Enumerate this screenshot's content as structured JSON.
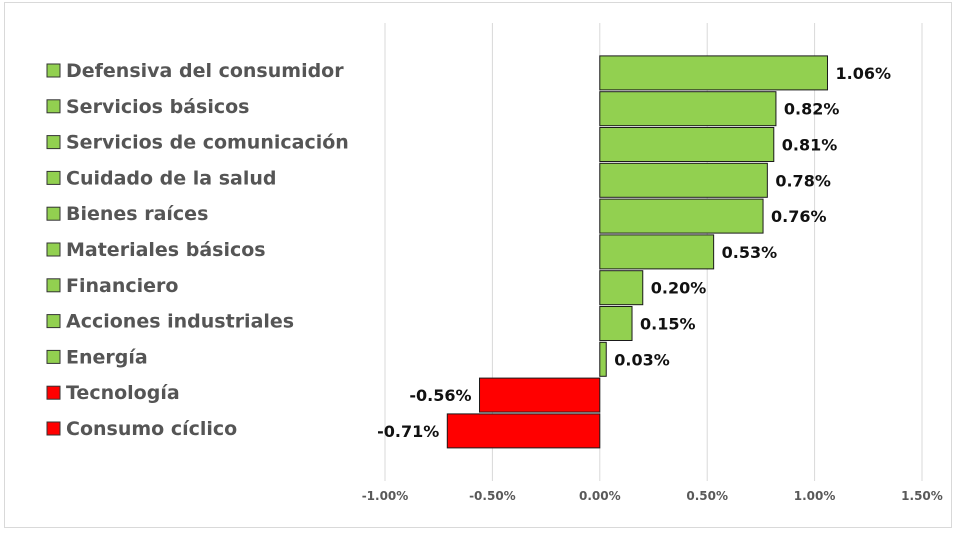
{
  "chart_data": {
    "type": "bar",
    "orientation": "horizontal",
    "categories": [
      "Defensiva del consumidor",
      "Servicios básicos",
      "Servicios de comunicación",
      "Cuidado de la salud",
      "Bienes raíces",
      "Materiales básicos",
      "Financiero",
      "Acciones industriales",
      "Energía",
      "Tecnología",
      "Consumo cíclico"
    ],
    "values": [
      1.06,
      0.82,
      0.81,
      0.78,
      0.76,
      0.53,
      0.2,
      0.15,
      0.03,
      -0.56,
      -0.71
    ],
    "value_labels": [
      "1.06%",
      "0.82%",
      "0.81%",
      "0.78%",
      "0.76%",
      "0.53%",
      "0.20%",
      "0.15%",
      "0.03%",
      "-0.56%",
      "-0.71%"
    ],
    "xlim": [
      -1.0,
      1.5
    ],
    "x_ticks": [
      -1.0,
      -0.5,
      0.0,
      0.5,
      1.0,
      1.5
    ],
    "x_tick_labels": [
      "-1.00%",
      "-0.50%",
      "0.00%",
      "0.50%",
      "1.00%",
      "1.50%"
    ],
    "grid": "vertical",
    "legend_position": "left",
    "colors": {
      "positive": "#92d050",
      "negative": "#ff0000",
      "bar_border": "#1a1a1a",
      "grid": "#d9d9d9"
    },
    "title": "",
    "xlabel": "",
    "ylabel": ""
  }
}
